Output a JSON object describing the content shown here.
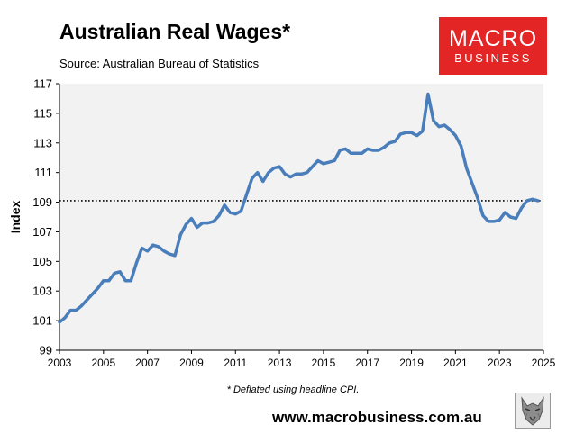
{
  "header": {
    "title": "Australian Real Wages*",
    "source": "Source: Australian Bureau of Statistics"
  },
  "logo": {
    "line1": "MACRO",
    "line2": "BUSINESS",
    "color": "#e32526"
  },
  "footer": {
    "note": "* Deflated using headline CPI.",
    "website": "www.macrobusiness.com.au",
    "wolf_icon": "wolf-head-icon"
  },
  "colors": {
    "line": "#4a7ebb",
    "plot_background": "#f2f2f2",
    "reference_line": "#000000"
  },
  "chart_data": {
    "type": "line",
    "title": "Australian Real Wages*",
    "xlabel": "",
    "ylabel": "Index",
    "xlim": [
      2003,
      2025
    ],
    "ylim": [
      99,
      117
    ],
    "x_ticks": [
      "2003",
      "2005",
      "2007",
      "2009",
      "2011",
      "2013",
      "2015",
      "2017",
      "2019",
      "2021",
      "2023",
      "2025"
    ],
    "y_ticks": [
      "99",
      "101",
      "103",
      "105",
      "107",
      "109",
      "111",
      "113",
      "115",
      "117"
    ],
    "grid": false,
    "legend": "none",
    "reference_line": {
      "style": "dotted",
      "y": 109.1
    },
    "series": [
      {
        "x": [
          2003.0,
          2003.25,
          2003.5,
          2003.75,
          2004.0,
          2004.25,
          2004.5,
          2004.75,
          2005.0,
          2005.25,
          2005.5,
          2005.75,
          2006.0,
          2006.25,
          2006.5,
          2006.75,
          2007.0,
          2007.25,
          2007.5,
          2007.75,
          2008.0,
          2008.25,
          2008.5,
          2008.75,
          2009.0,
          2009.25,
          2009.5,
          2009.75,
          2010.0,
          2010.25,
          2010.5,
          2010.75,
          2011.0,
          2011.25,
          2011.5,
          2011.75,
          2012.0,
          2012.25,
          2012.5,
          2012.75,
          2013.0,
          2013.25,
          2013.5,
          2013.75,
          2014.0,
          2014.25,
          2014.5,
          2014.75,
          2015.0,
          2015.25,
          2015.5,
          2015.75,
          2016.0,
          2016.25,
          2016.5,
          2016.75,
          2017.0,
          2017.25,
          2017.5,
          2017.75,
          2018.0,
          2018.25,
          2018.5,
          2018.75,
          2019.0,
          2019.25,
          2019.5,
          2019.75,
          2020.0,
          2020.25,
          2020.5,
          2020.75,
          2021.0,
          2021.25,
          2021.5,
          2021.75,
          2022.0,
          2022.25,
          2022.5,
          2022.75,
          2023.0,
          2023.25,
          2023.5,
          2023.75,
          2024.0,
          2024.25,
          2024.5,
          2024.75
        ],
        "values": [
          100.9,
          101.2,
          101.7,
          101.7,
          102.0,
          102.4,
          102.8,
          103.2,
          103.7,
          103.7,
          104.2,
          104.3,
          103.7,
          103.7,
          104.9,
          105.9,
          105.7,
          106.1,
          106.0,
          105.7,
          105.5,
          105.4,
          106.8,
          107.5,
          107.9,
          107.3,
          107.6,
          107.6,
          107.7,
          108.1,
          108.8,
          108.3,
          108.2,
          108.4,
          109.5,
          110.6,
          111.0,
          110.4,
          111.0,
          111.3,
          111.4,
          110.9,
          110.7,
          110.9,
          110.9,
          111.0,
          111.4,
          111.8,
          111.6,
          111.7,
          111.8,
          112.5,
          112.6,
          112.3,
          112.3,
          112.3,
          112.6,
          112.5,
          112.5,
          112.7,
          113.0,
          113.1,
          113.6,
          113.7,
          113.7,
          113.5,
          113.8,
          116.3,
          114.5,
          114.1,
          114.2,
          113.9,
          113.5,
          112.8,
          111.3,
          110.3,
          109.3,
          108.1,
          107.7,
          107.7,
          107.8,
          108.3,
          108.0,
          107.9,
          108.6,
          109.1,
          109.2,
          109.1
        ]
      }
    ]
  }
}
